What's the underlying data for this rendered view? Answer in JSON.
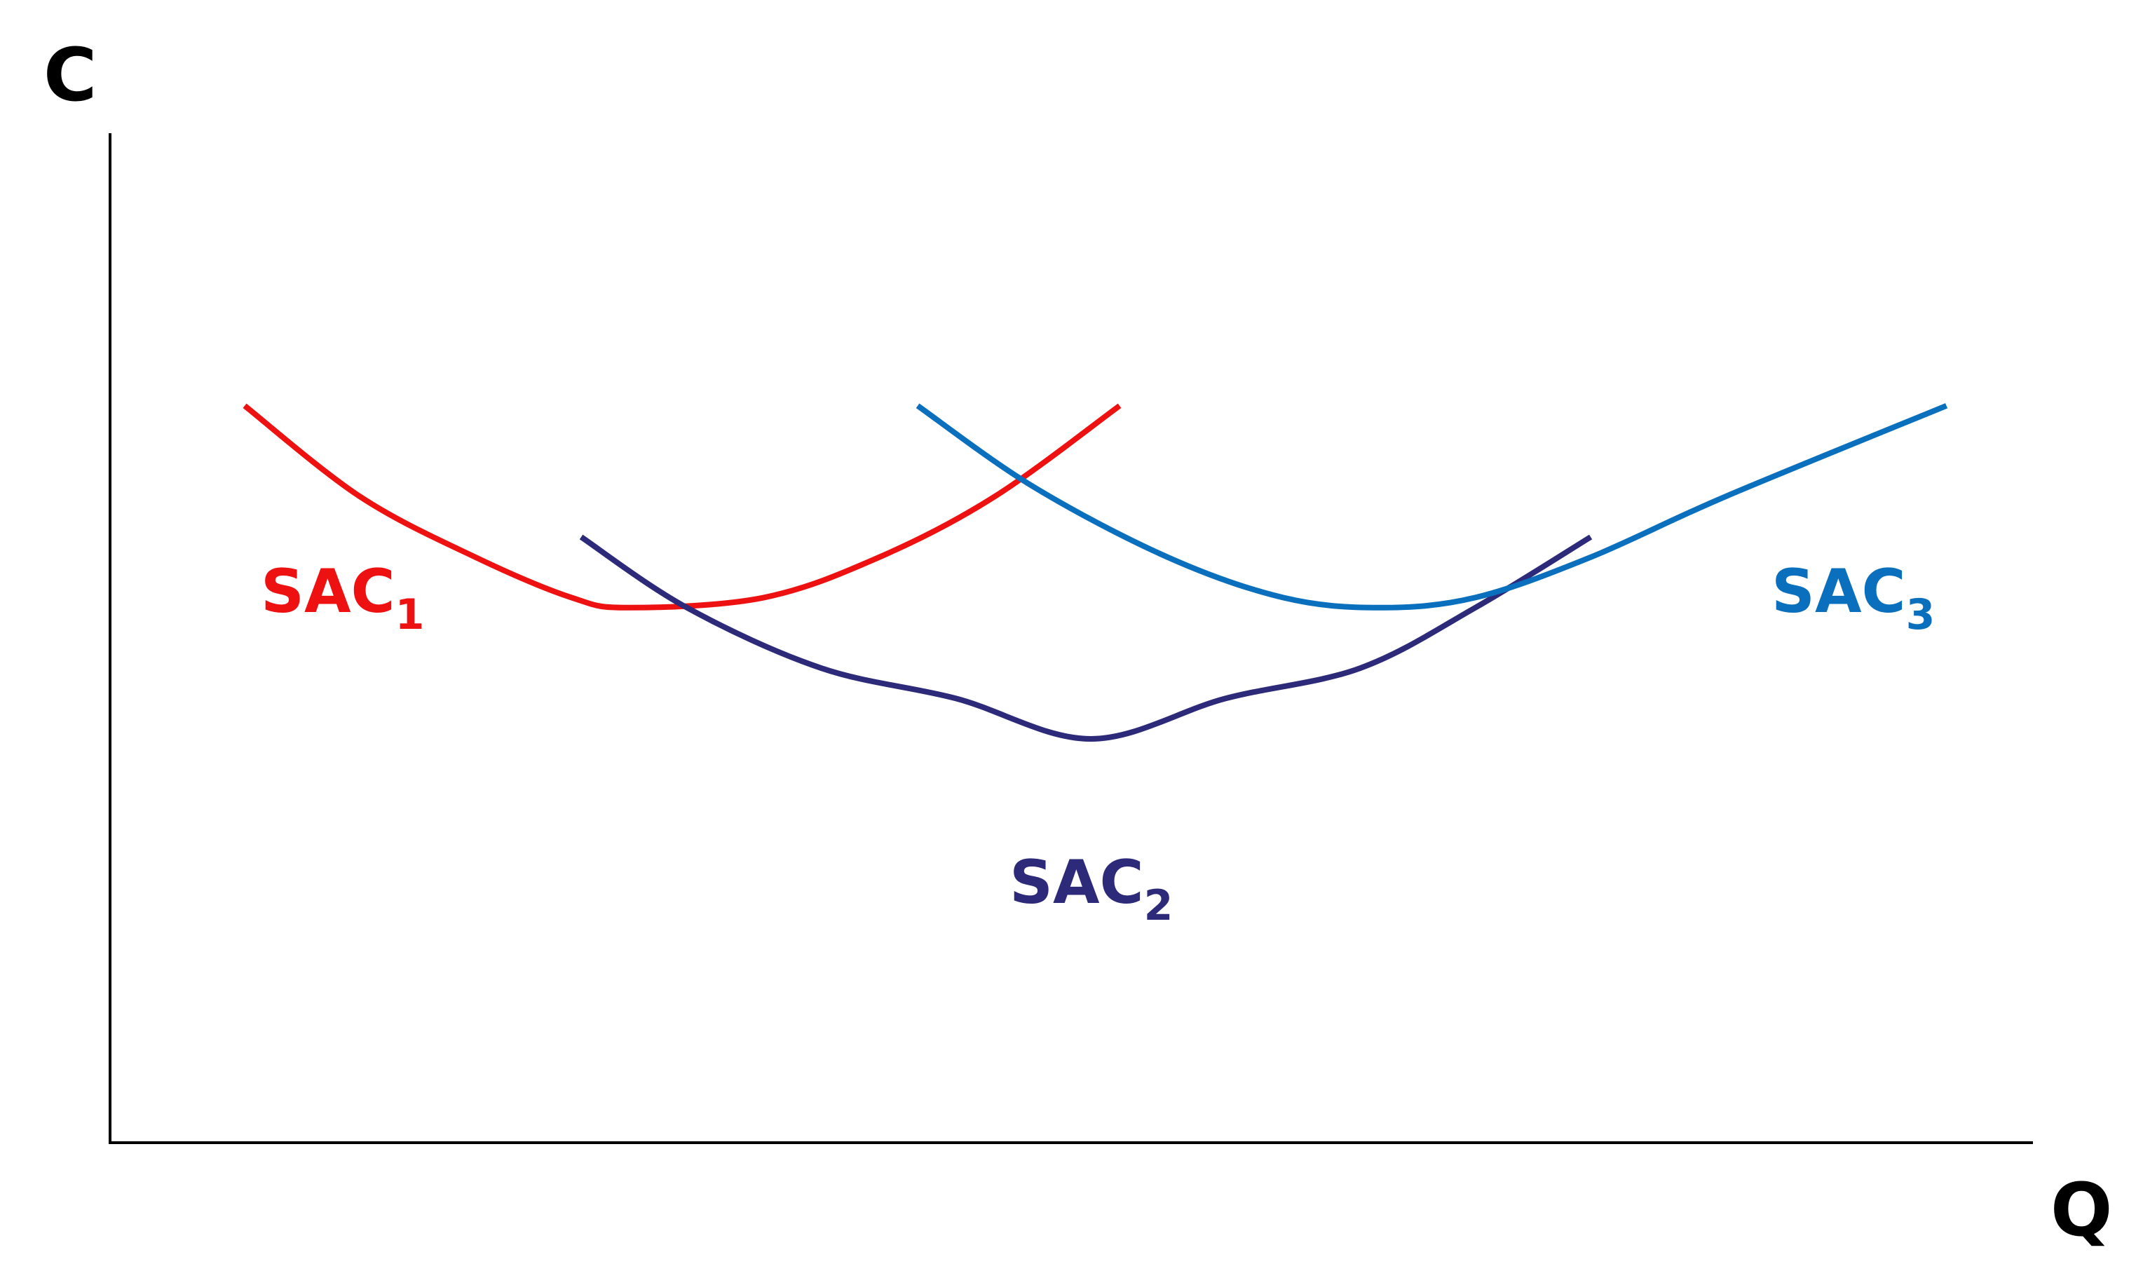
{
  "chart_data": {
    "type": "line",
    "title": "",
    "xlabel": "Q",
    "ylabel": "C",
    "xlim": [
      0,
      100
    ],
    "ylim": [
      0,
      100
    ],
    "grid": false,
    "legend": "none",
    "series": [
      {
        "name": "SAC1",
        "label_main": "SAC",
        "label_sub": "1",
        "color": "#ee1111",
        "points": [
          [
            7,
            73
          ],
          [
            13,
            64
          ],
          [
            19,
            58
          ],
          [
            24,
            54
          ],
          [
            27,
            53
          ],
          [
            34,
            54
          ],
          [
            40,
            58
          ],
          [
            46,
            64
          ],
          [
            52.5,
            73
          ]
        ]
      },
      {
        "name": "SAC2",
        "label_main": "SAC",
        "label_sub": "2",
        "color": "#2e2a7a",
        "points": [
          [
            24.5,
            60
          ],
          [
            30,
            53
          ],
          [
            37,
            47
          ],
          [
            44,
            44
          ],
          [
            51,
            40
          ],
          [
            58,
            44
          ],
          [
            65,
            47
          ],
          [
            71,
            53
          ],
          [
            77,
            60
          ]
        ]
      },
      {
        "name": "SAC3",
        "label_main": "SAC",
        "label_sub": "3",
        "color": "#0a6fbd",
        "points": [
          [
            42,
            73
          ],
          [
            48,
            65
          ],
          [
            55,
            58
          ],
          [
            61,
            54
          ],
          [
            66,
            53
          ],
          [
            71,
            54
          ],
          [
            77,
            58
          ],
          [
            84,
            64
          ],
          [
            95.5,
            73
          ]
        ]
      }
    ]
  }
}
